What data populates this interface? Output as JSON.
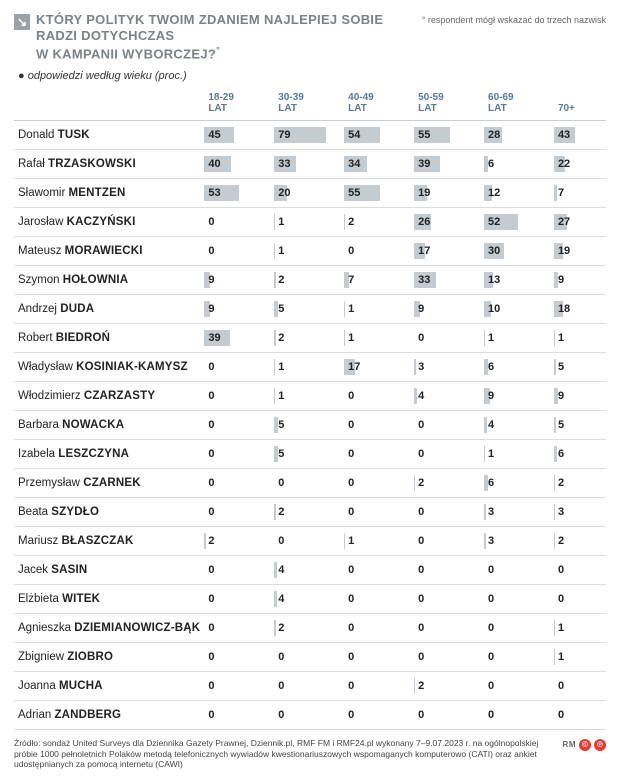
{
  "header": {
    "title_line1": "KTÓRY POLITYK TWOIM ZDANIEM NAJLEPIEJ SOBIE RADZI DOTYCHCZAS",
    "title_line2": "W KAMPANII WYBORCZEJ?",
    "footnote_marker": "°",
    "note_right": "° respondent mógł wskazać do trzech nazwisk",
    "subtitle": "odpowiedzi według wieku (proc.)"
  },
  "columns": [
    {
      "l1": "18-29",
      "l2": "LAT"
    },
    {
      "l1": "30-39",
      "l2": "LAT"
    },
    {
      "l1": "40-49",
      "l2": "LAT"
    },
    {
      "l1": "50-59",
      "l2": "LAT"
    },
    {
      "l1": "60-69",
      "l2": "LAT"
    },
    {
      "l1": "70+",
      "l2": ""
    }
  ],
  "max_value": 100,
  "bar_color": "#c4cbd1",
  "rows": [
    {
      "first": "Donald",
      "last": "Tusk",
      "v": [
        45,
        79,
        54,
        55,
        28,
        43
      ]
    },
    {
      "first": "Rafał",
      "last": "Trzaskowski",
      "v": [
        40,
        33,
        34,
        39,
        6,
        22
      ]
    },
    {
      "first": "Sławomir",
      "last": "Mentzen",
      "v": [
        53,
        20,
        55,
        19,
        12,
        7
      ]
    },
    {
      "first": "Jarosław",
      "last": "Kaczyński",
      "v": [
        0,
        1,
        2,
        26,
        52,
        27
      ]
    },
    {
      "first": "Mateusz",
      "last": "Morawiecki",
      "v": [
        0,
        1,
        0,
        17,
        30,
        19
      ]
    },
    {
      "first": "Szymon",
      "last": "Hołownia",
      "v": [
        9,
        2,
        7,
        33,
        13,
        9
      ]
    },
    {
      "first": "Andrzej",
      "last": "Duda",
      "v": [
        9,
        5,
        1,
        9,
        10,
        18
      ]
    },
    {
      "first": "Robert",
      "last": "Biedroń",
      "v": [
        39,
        2,
        1,
        0,
        1,
        1
      ]
    },
    {
      "first": "Władysław",
      "last": "Kosiniak-Kamysz",
      "v": [
        0,
        1,
        17,
        3,
        6,
        5
      ]
    },
    {
      "first": "Włodzimierz",
      "last": "Czarzasty",
      "v": [
        0,
        1,
        0,
        4,
        9,
        9
      ]
    },
    {
      "first": "Barbara",
      "last": "Nowacka",
      "v": [
        0,
        5,
        0,
        0,
        4,
        5
      ]
    },
    {
      "first": "Izabela",
      "last": "Leszczyna",
      "v": [
        0,
        5,
        0,
        0,
        1,
        6
      ]
    },
    {
      "first": "Przemysław",
      "last": "Czarnek",
      "v": [
        0,
        0,
        0,
        2,
        6,
        2
      ]
    },
    {
      "first": "Beata",
      "last": "Szydło",
      "v": [
        0,
        2,
        0,
        0,
        3,
        3
      ]
    },
    {
      "first": "Mariusz",
      "last": "Błaszczak",
      "v": [
        2,
        0,
        1,
        0,
        3,
        2
      ]
    },
    {
      "first": "Jacek",
      "last": "Sasin",
      "v": [
        0,
        4,
        0,
        0,
        0,
        0
      ]
    },
    {
      "first": "Elżbieta",
      "last": "Witek",
      "v": [
        0,
        4,
        0,
        0,
        0,
        0
      ]
    },
    {
      "first": "Agnieszka",
      "last": "Dziemianowicz-Bąk",
      "v": [
        0,
        2,
        0,
        0,
        0,
        1
      ]
    },
    {
      "first": "Zbigniew",
      "last": "Ziobro",
      "v": [
        0,
        0,
        0,
        0,
        0,
        1
      ]
    },
    {
      "first": "Joanna",
      "last": "Mucha",
      "v": [
        0,
        0,
        0,
        2,
        0,
        0
      ]
    },
    {
      "first": "Adrian",
      "last": "Zandberg",
      "v": [
        0,
        0,
        0,
        0,
        0,
        0
      ]
    }
  ],
  "source": {
    "text": "Źródło: sondaż United Surveys dla Dziennika Gazety Prawnej, Dziennik.pl, RMF FM i RMF24.pl wykonany 7–9.07.2023 r. na ogólnopolskiej próbie 1000 pełnoletnich Polaków metodą telefonicznych wywiadów kwestionariuszowych wspomaganych komputerowo (CATI) oraz ankiet udostępnianych za pomocą internetu (CAWI)",
    "badge_rm": "RM",
    "badge_c": "©",
    "badge_p": "℗",
    "badge_c_color": "#e03c31",
    "badge_p_color": "#e03c31"
  },
  "style": {
    "header_color": "#7a8288",
    "col_header_color": "#5a7a94",
    "grid_color": "#d9dde0",
    "background": "#ffffff",
    "name_fontsize": 11.5,
    "val_fontsize": 11
  }
}
